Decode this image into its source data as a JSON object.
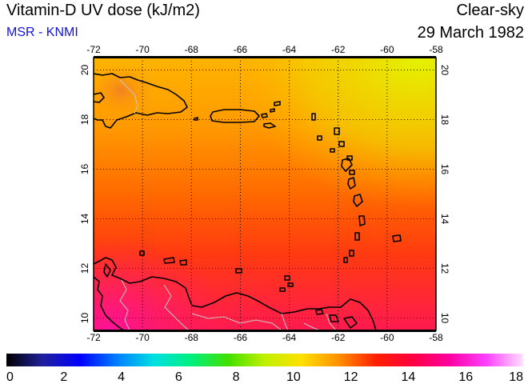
{
  "header": {
    "title": "Vitamin-D UV dose (kJ/m2)",
    "source": "MSR - KNMI",
    "sky_condition": "Clear-sky",
    "date": "29 March 1982"
  },
  "map": {
    "lon_range": [
      -72,
      -58
    ],
    "lat_range": [
      9.5,
      20.5
    ],
    "lon_ticks": [
      "-72",
      "-70",
      "-68",
      "-66",
      "-64",
      "-62",
      "-60",
      "-58"
    ],
    "lat_ticks": [
      "10",
      "12",
      "14",
      "16",
      "18",
      "20"
    ],
    "grid": true,
    "field_description_colors": {
      "north_east": "#e6f000",
      "north": "#ffbf00",
      "middle": "#ff8000",
      "south": "#ff2a20",
      "south_west": "#ff1070"
    }
  },
  "colorbar": {
    "min": 0,
    "max": 18,
    "tick_labels": [
      "0",
      "2",
      "4",
      "6",
      "8",
      "10",
      "12",
      "14",
      "16",
      "18"
    ],
    "colors": [
      "#000000",
      "#2020a0",
      "#0000ff",
      "#0080ff",
      "#00e0e0",
      "#00f080",
      "#40e000",
      "#c0f000",
      "#ffe000",
      "#ff9000",
      "#ff2000",
      "#ff0040",
      "#ff00a0",
      "#ff40ff",
      "#ffe0ff"
    ]
  }
}
